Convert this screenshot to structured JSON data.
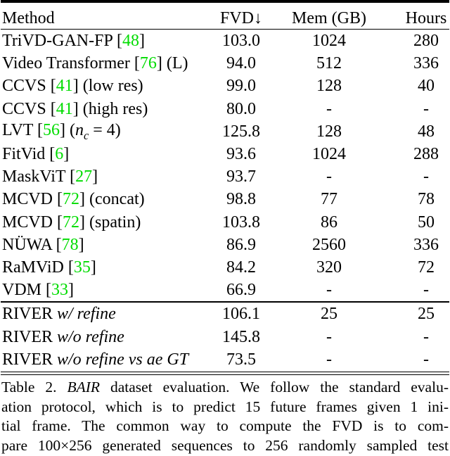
{
  "colors": {
    "background": "#ffffff",
    "text": "#000000",
    "citation_green": "#00DC00"
  },
  "table": {
    "columns": [
      "Method",
      "FVD↓",
      "Mem (GB)",
      "Hours"
    ],
    "rows": [
      {
        "name": "TriVD-GAN-FP",
        "cite": "48",
        "fvd": "103.0",
        "mem": "1024",
        "hours": "280"
      },
      {
        "name": "Video Transformer",
        "cite": "76",
        "note": "(L)",
        "fvd": "94.0",
        "mem": "512",
        "hours": "336"
      },
      {
        "name": "CCVS",
        "cite": "41",
        "note": "(low res)",
        "fvd": "99.0",
        "mem": "128",
        "hours": "40"
      },
      {
        "name": "CCVS",
        "cite": "41",
        "note": "(high res)",
        "fvd": "80.0",
        "mem": "-",
        "hours": "-"
      },
      {
        "name": "LVT",
        "cite": "56",
        "math_note": {
          "open": "(",
          "var": "n",
          "sub": "c",
          "close": " = 4)"
        },
        "fvd": "125.8",
        "mem": "128",
        "hours": "48"
      },
      {
        "name": "FitVid",
        "cite": "6",
        "fvd": "93.6",
        "mem": "1024",
        "hours": "288"
      },
      {
        "name": "MaskViT",
        "cite": "27",
        "fvd": "93.7",
        "mem": "-",
        "hours": "-"
      },
      {
        "name": "MCVD",
        "cite": "72",
        "note": "(concat)",
        "fvd": "98.8",
        "mem": "77",
        "hours": "78"
      },
      {
        "name": "MCVD",
        "cite": "72",
        "note": "(spatin)",
        "fvd": "103.8",
        "mem": "86",
        "hours": "50"
      },
      {
        "name": "NÜWA",
        "cite": "78",
        "fvd": "86.9",
        "mem": "2560",
        "hours": "336"
      },
      {
        "name": "RaMViD",
        "cite": "35",
        "fvd": "84.2",
        "mem": "320",
        "hours": "72"
      },
      {
        "name": "VDM",
        "cite": "33",
        "fvd": "66.9",
        "mem": "-",
        "hours": "-"
      }
    ],
    "river_rows": [
      {
        "name": "RIVER",
        "variant": "w/ refine",
        "fvd": "106.1",
        "mem": "25",
        "hours": "25"
      },
      {
        "name": "RIVER",
        "variant": "w/o refine",
        "fvd": "145.8",
        "mem": "-",
        "hours": "-"
      },
      {
        "name": "RIVER",
        "variant": "w/o refine vs ae GT",
        "fvd": "73.5",
        "mem": "-",
        "hours": "-"
      }
    ]
  },
  "caption": {
    "lines": [
      {
        "segments": [
          {
            "text": "Table 2. "
          },
          {
            "text": "BAIR",
            "italic": true
          },
          {
            "text": " dataset evaluation.  We follow the standard evalu-"
          }
        ]
      },
      {
        "segments": [
          {
            "text": "ation protocol, which is to predict 15 future frames given 1 ini-"
          }
        ]
      },
      {
        "segments": [
          {
            "text": "tial frame.  The common way to compute the FVD is to com-"
          }
        ]
      },
      {
        "segments": [
          {
            "text": "pare 100×256 generated sequences to 256 randomly sampled test"
          }
        ]
      }
    ]
  }
}
